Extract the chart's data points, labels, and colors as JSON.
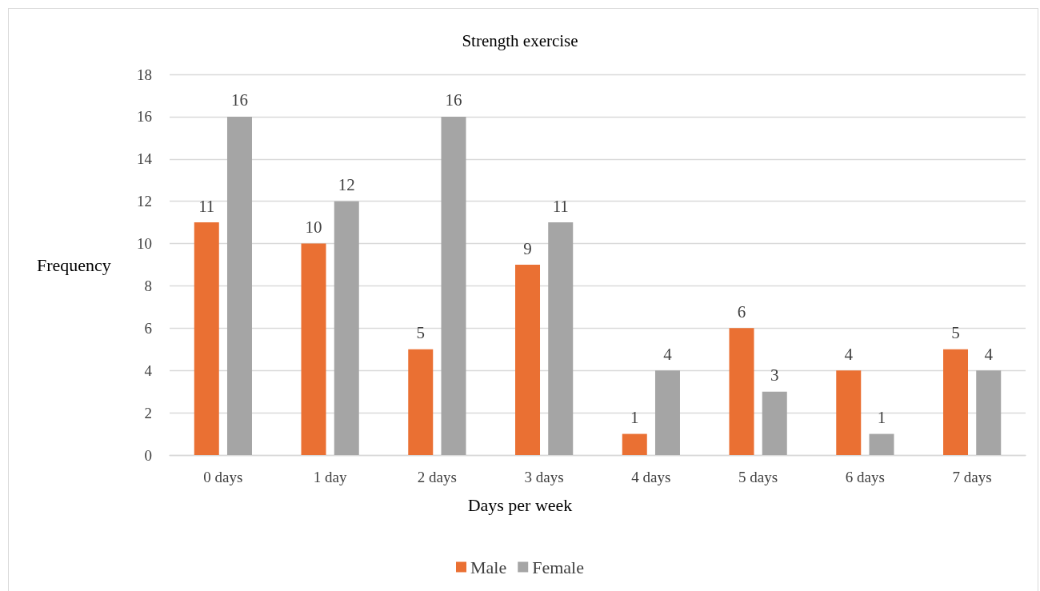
{
  "chart_data": {
    "type": "bar",
    "title": "Strength exercise",
    "xlabel": "Days per week",
    "ylabel": "Frequency",
    "categories": [
      "0 days",
      "1 day",
      "2 days",
      "3 days",
      "4 days",
      "5 days",
      "6 days",
      "7 days"
    ],
    "series": [
      {
        "name": "Male",
        "color": "#ea7033",
        "values": [
          11,
          10,
          5,
          9,
          1,
          6,
          4,
          5
        ]
      },
      {
        "name": "Female",
        "color": "#a5a5a5",
        "values": [
          16,
          12,
          16,
          11,
          4,
          3,
          1,
          4
        ]
      }
    ],
    "ylim": [
      0,
      18
    ],
    "yticks": [
      0,
      2,
      4,
      6,
      8,
      10,
      12,
      14,
      16,
      18
    ],
    "grid": "y",
    "legend": "bottom",
    "data_labels": true
  }
}
